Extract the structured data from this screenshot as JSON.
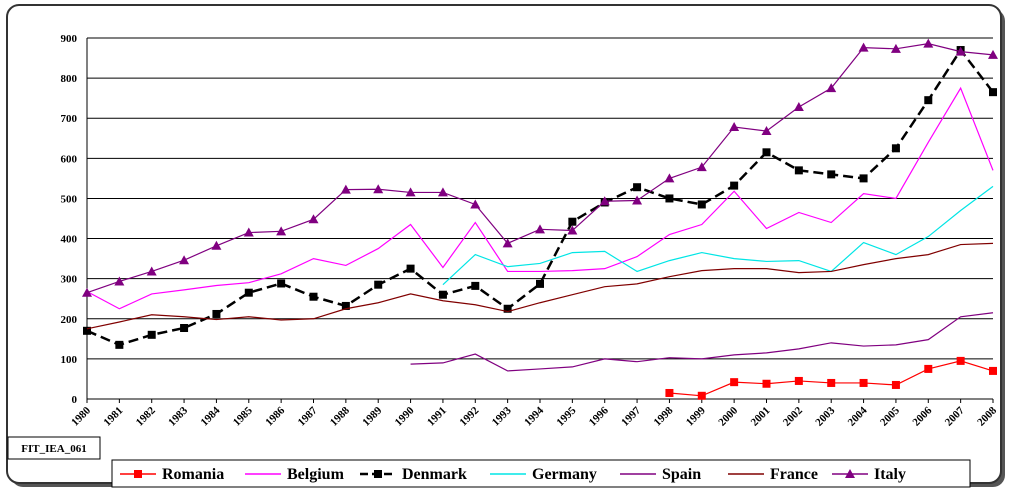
{
  "chart_data": {
    "type": "line",
    "label": "FIT_IEA_061",
    "categories": [
      "1980",
      "1981",
      "1982",
      "1983",
      "1984",
      "1985",
      "1986",
      "1987",
      "1988",
      "1989",
      "1990",
      "1991",
      "1992",
      "1993",
      "1994",
      "1995",
      "1996",
      "1997",
      "1998",
      "1999",
      "2000",
      "2001",
      "2002",
      "2003",
      "2004",
      "2005",
      "2006",
      "2007",
      "2008"
    ],
    "ylim": [
      0,
      900
    ],
    "yticks": [
      0,
      100,
      200,
      300,
      400,
      500,
      600,
      700,
      800,
      900
    ],
    "grid": true,
    "series": [
      {
        "name": "Romania",
        "color": "#ff0000",
        "marker": "square",
        "dash": false,
        "values": [
          null,
          null,
          null,
          null,
          null,
          null,
          null,
          null,
          null,
          null,
          null,
          null,
          null,
          null,
          null,
          null,
          null,
          null,
          15,
          8,
          42,
          38,
          45,
          40,
          40,
          35,
          75,
          95,
          70
        ]
      },
      {
        "name": "Belgium",
        "color": "#ff00ff",
        "marker": "none",
        "dash": false,
        "values": [
          268,
          225,
          262,
          272,
          283,
          290,
          312,
          350,
          333,
          375,
          435,
          328,
          440,
          318,
          318,
          320,
          325,
          355,
          410,
          435,
          518,
          425,
          465,
          440,
          512,
          500,
          640,
          775,
          570
        ]
      },
      {
        "name": "Denmark",
        "color": "#000000",
        "marker": "square",
        "dash": true,
        "values": [
          170,
          135,
          160,
          177,
          212,
          265,
          288,
          255,
          232,
          285,
          325,
          260,
          282,
          225,
          287,
          442,
          490,
          528,
          500,
          485,
          532,
          615,
          570,
          560,
          550,
          625,
          745,
          870,
          765
        ]
      },
      {
        "name": "Germany",
        "color": "#00e5e5",
        "marker": "none",
        "dash": false,
        "values": [
          null,
          null,
          null,
          null,
          null,
          null,
          null,
          null,
          null,
          null,
          null,
          285,
          360,
          330,
          338,
          365,
          368,
          318,
          345,
          365,
          350,
          343,
          345,
          318,
          390,
          360,
          405,
          470,
          530
        ]
      },
      {
        "name": "Spain",
        "color": "#800080",
        "marker": "none",
        "dash": false,
        "values": [
          null,
          null,
          null,
          null,
          null,
          null,
          null,
          null,
          null,
          null,
          87,
          90,
          112,
          70,
          75,
          80,
          100,
          93,
          103,
          100,
          110,
          115,
          125,
          140,
          132,
          135,
          148,
          205,
          215
        ]
      },
      {
        "name": "France",
        "color": "#800000",
        "marker": "none",
        "dash": false,
        "values": [
          175,
          192,
          210,
          205,
          198,
          205,
          197,
          200,
          225,
          240,
          262,
          245,
          235,
          218,
          240,
          260,
          280,
          287,
          305,
          320,
          325,
          325,
          315,
          318,
          335,
          350,
          360,
          385,
          388
        ]
      },
      {
        "name": "Italy",
        "color": "#800080",
        "marker": "triangle",
        "dash": false,
        "values": [
          265,
          293,
          318,
          346,
          382,
          415,
          418,
          448,
          522,
          523,
          515,
          515,
          485,
          388,
          423,
          420,
          493,
          495,
          550,
          578,
          678,
          668,
          728,
          775,
          876,
          873,
          886,
          866,
          858
        ]
      }
    ]
  }
}
